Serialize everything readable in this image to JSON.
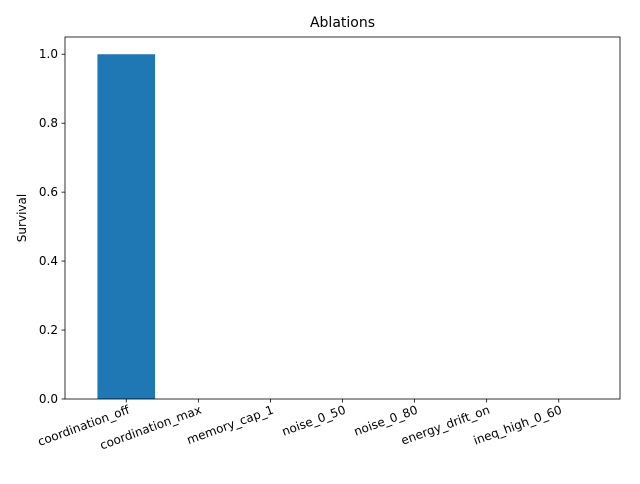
{
  "chart_data": {
    "type": "bar",
    "title": "Ablations",
    "xlabel": "",
    "ylabel": "Survival",
    "categories": [
      "coordination_off",
      "coordination_max",
      "memory_cap_1",
      "noise_0_50",
      "noise_0_80",
      "energy_drift_on",
      "ineq_high_0_60"
    ],
    "values": [
      1.0,
      0.0,
      0.0,
      0.0,
      0.0,
      0.0,
      0.0
    ],
    "ylim": [
      0,
      1.05
    ],
    "yticks": [
      0.0,
      0.2,
      0.4,
      0.6,
      0.8,
      1.0
    ],
    "ytick_labels": [
      "0.0",
      "0.2",
      "0.4",
      "0.6",
      "0.8",
      "1.0"
    ],
    "grid": false,
    "bar_color": "#1f77b4",
    "xtick_rotation_deg": 20
  }
}
